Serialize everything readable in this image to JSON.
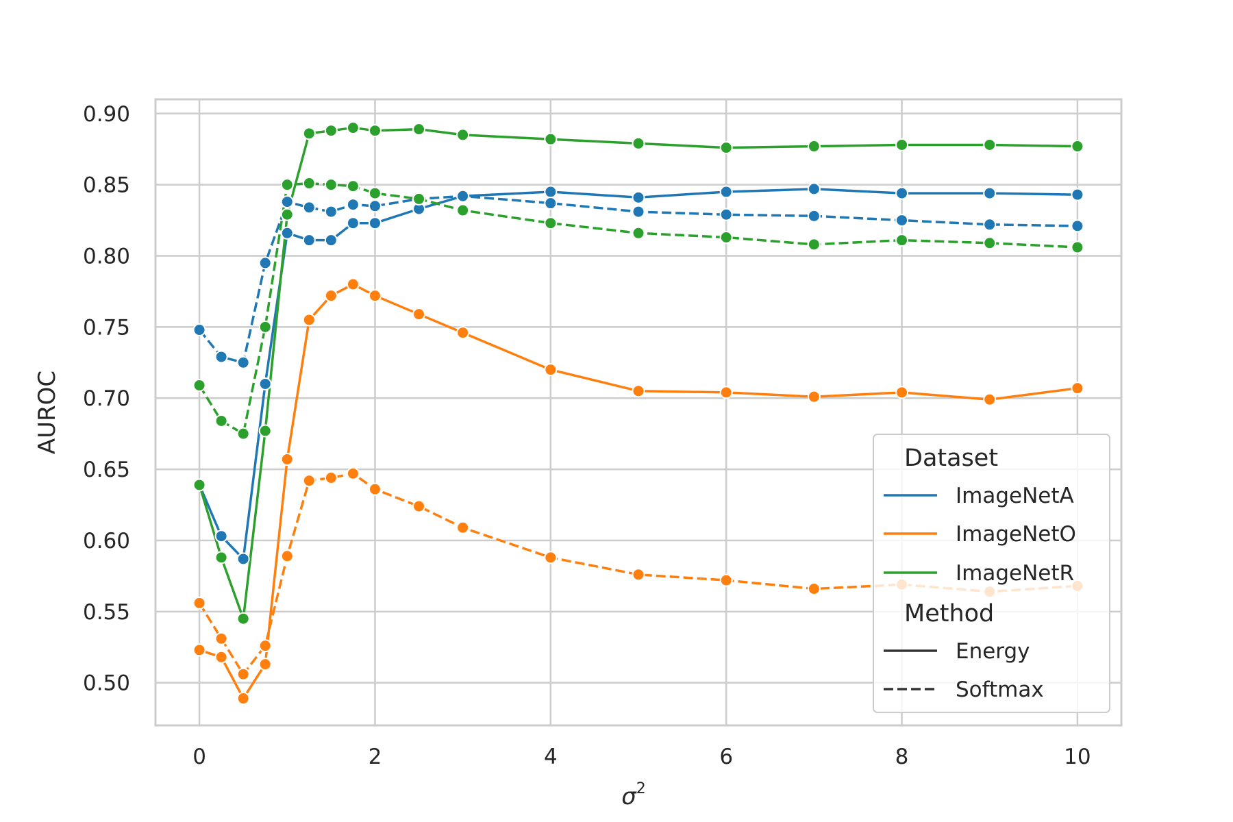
{
  "chart_data": {
    "type": "line",
    "xlabel": "σ",
    "xlabel_superscript": "2",
    "ylabel": "AUROC",
    "xlim": [
      -0.5,
      10.5
    ],
    "ylim": [
      0.47,
      0.91
    ],
    "xticks": [
      0,
      2,
      4,
      6,
      8,
      10
    ],
    "xtick_labels": [
      "0",
      "2",
      "4",
      "6",
      "8",
      "10"
    ],
    "yticks": [
      0.5,
      0.55,
      0.6,
      0.65,
      0.7,
      0.75,
      0.8,
      0.85,
      0.9
    ],
    "ytick_labels": [
      "0.50",
      "0.55",
      "0.60",
      "0.65",
      "0.70",
      "0.75",
      "0.80",
      "0.85",
      "0.90"
    ],
    "grid": true,
    "legend_position": "lower-right",
    "legend": {
      "dataset_title": "Dataset",
      "method_title": "Method",
      "datasets": [
        {
          "name": "ImageNetA",
          "color": "#1f77b4"
        },
        {
          "name": "ImageNetO",
          "color": "#ff7f0e"
        },
        {
          "name": "ImageNetR",
          "color": "#2ca02c"
        }
      ],
      "methods": [
        {
          "name": "Energy",
          "style": "solid"
        },
        {
          "name": "Softmax",
          "style": "dashed"
        }
      ]
    },
    "x": [
      0,
      0.25,
      0.5,
      0.75,
      1,
      1.25,
      1.5,
      1.75,
      2,
      2.5,
      3,
      4,
      5,
      6,
      7,
      8,
      9,
      10
    ],
    "series": [
      {
        "dataset": "ImageNetA",
        "method": "Energy",
        "color": "#1f77b4",
        "style": "solid",
        "values": [
          0.639,
          0.603,
          0.587,
          0.71,
          0.816,
          0.811,
          0.811,
          0.823,
          0.823,
          0.833,
          0.842,
          0.845,
          0.841,
          0.845,
          0.847,
          0.844,
          0.844,
          0.843
        ]
      },
      {
        "dataset": "ImageNetA",
        "method": "Softmax",
        "color": "#1f77b4",
        "style": "dashed",
        "values": [
          0.748,
          0.729,
          0.725,
          0.795,
          0.838,
          0.834,
          0.831,
          0.836,
          0.835,
          0.84,
          0.842,
          0.837,
          0.831,
          0.829,
          0.828,
          0.825,
          0.822,
          0.821
        ]
      },
      {
        "dataset": "ImageNetO",
        "method": "Energy",
        "color": "#ff7f0e",
        "style": "solid",
        "values": [
          0.523,
          0.518,
          0.489,
          0.513,
          0.657,
          0.755,
          0.772,
          0.78,
          0.772,
          0.759,
          0.746,
          0.72,
          0.705,
          0.704,
          0.701,
          0.704,
          0.699,
          0.707
        ]
      },
      {
        "dataset": "ImageNetO",
        "method": "Softmax",
        "color": "#ff7f0e",
        "style": "dashed",
        "values": [
          0.556,
          0.531,
          0.506,
          0.526,
          0.589,
          0.642,
          0.644,
          0.647,
          0.636,
          0.624,
          0.609,
          0.588,
          0.576,
          0.572,
          0.566,
          0.569,
          0.564,
          0.568
        ]
      },
      {
        "dataset": "ImageNetR",
        "method": "Energy",
        "color": "#2ca02c",
        "style": "solid",
        "values": [
          0.639,
          0.588,
          0.545,
          0.677,
          0.829,
          0.886,
          0.888,
          0.89,
          0.888,
          0.889,
          0.885,
          0.882,
          0.879,
          0.876,
          0.877,
          0.878,
          0.878,
          0.877
        ]
      },
      {
        "dataset": "ImageNetR",
        "method": "Softmax",
        "color": "#2ca02c",
        "style": "dashed",
        "values": [
          0.709,
          0.684,
          0.675,
          0.75,
          0.85,
          0.851,
          0.85,
          0.849,
          0.844,
          0.84,
          0.832,
          0.823,
          0.816,
          0.813,
          0.808,
          0.811,
          0.809,
          0.806
        ]
      }
    ]
  }
}
